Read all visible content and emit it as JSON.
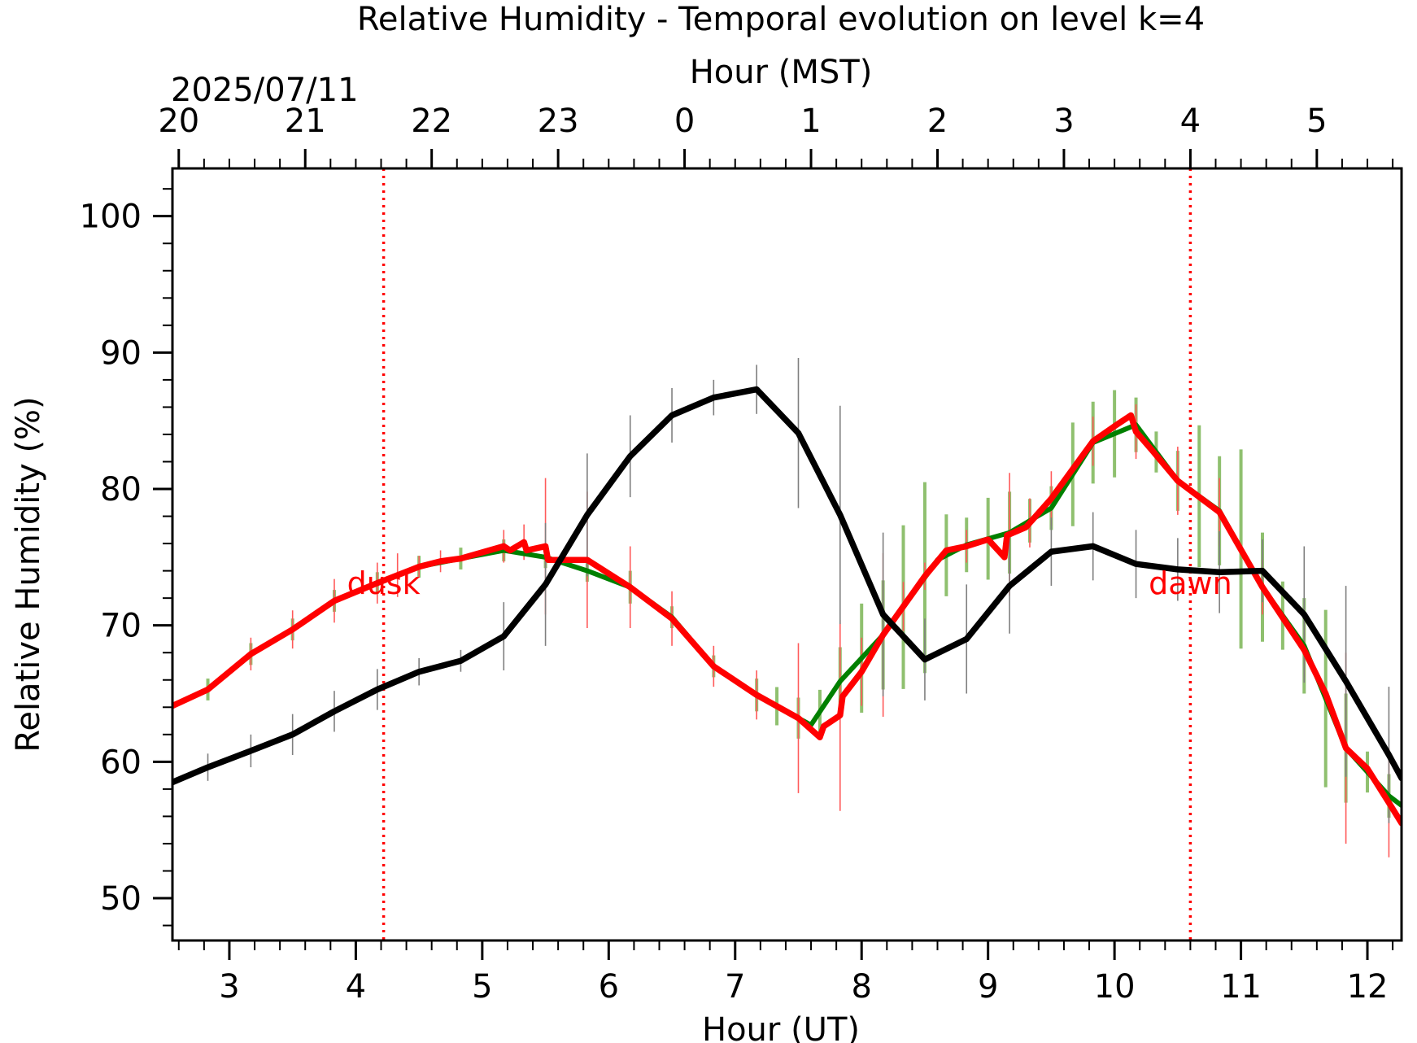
{
  "chart_data": {
    "type": "line",
    "title": "Relative Humidity - Temporal evolution on level k=4",
    "xlabel": "Hour (UT)",
    "top_xlabel": "Hour (MST)",
    "date_label": "2025/07/11",
    "ylabel": "Relative Humidity (%)",
    "xlim": [
      2.55,
      12.27
    ],
    "ylim": [
      46.9,
      103.5
    ],
    "x_ticks": [
      3,
      4,
      5,
      6,
      7,
      8,
      9,
      10,
      11,
      12
    ],
    "x_tick_labels": [
      "3",
      "4",
      "5",
      "6",
      "7",
      "8",
      "9",
      "10",
      "11",
      "12"
    ],
    "top_ticks": [
      2.6,
      3.6,
      4.6,
      5.6,
      6.6,
      7.6,
      8.6,
      9.6,
      10.6,
      11.6,
      12.6,
      13.6
    ],
    "top_tick_labels": [
      "20",
      "21",
      "22",
      "23",
      "0",
      "1",
      "2",
      "3",
      "4",
      "5"
    ],
    "y_ticks": [
      50,
      60,
      70,
      80,
      90,
      100
    ],
    "y_tick_labels": [
      "50",
      "60",
      "70",
      "80",
      "90",
      "100"
    ],
    "grid": false,
    "colors": {
      "black_series": "#000000",
      "green_series": "#008000",
      "red_series": "#ff0000",
      "green_error": "#8fc06f",
      "red_error": "#ff5a5a",
      "black_error": "#7f7f7f",
      "event_line": "#ff0000"
    },
    "events": [
      {
        "label": "dusk",
        "x": 4.22
      },
      {
        "label": "dawn",
        "x": 10.6
      }
    ],
    "series": [
      {
        "color": "black",
        "x": [
          2.55,
          2.83,
          3.17,
          3.5,
          3.83,
          4.17,
          4.5,
          4.83,
          5.17,
          5.5,
          5.83,
          6.17,
          6.5,
          6.83,
          7.17,
          7.5,
          7.83,
          8.17,
          8.5,
          8.83,
          9.17,
          9.5,
          9.83,
          10.17,
          10.5,
          10.83,
          11.17,
          11.5,
          11.83,
          12.17,
          12.27
        ],
        "y": [
          58.5,
          59.6,
          60.8,
          62,
          63.7,
          65.3,
          66.6,
          67.4,
          69.2,
          73,
          78.1,
          82.4,
          85.4,
          86.7,
          87.3,
          84.1,
          78.1,
          70.8,
          67.5,
          69,
          72.9,
          75.4,
          75.8,
          74.5,
          74.1,
          73.9,
          74,
          70.8,
          65.9,
          60.5,
          58.8
        ],
        "err_x": [
          2.83,
          3.17,
          3.5,
          3.83,
          4.17,
          4.5,
          4.83,
          5.17,
          5.5,
          5.83,
          6.17,
          6.5,
          6.83,
          7.17,
          7.5,
          7.83,
          8.17,
          8.5,
          8.83,
          9.17,
          9.5,
          9.83,
          10.17,
          10.5,
          10.83,
          11.17,
          11.5,
          11.83,
          12.17
        ],
        "err_half": [
          1,
          1.2,
          1.5,
          1.5,
          1.5,
          1,
          0.8,
          2.5,
          4.5,
          4.5,
          3,
          2,
          1.3,
          1.8,
          5.5,
          8,
          6,
          3,
          4,
          3.5,
          2.5,
          2.5,
          2.5,
          2.3,
          3,
          2.3,
          5,
          7,
          5
        ],
        "lw": 7.5
      },
      {
        "color": "green",
        "x": [
          2.55,
          2.83,
          3.17,
          3.5,
          3.83,
          4.17,
          4.5,
          4.83,
          5.17,
          5.5,
          5.83,
          6.17,
          6.5,
          6.83,
          7.17,
          7.5,
          7.6,
          7.83,
          8.17,
          8.5,
          8.6,
          8.83,
          9.17,
          9.5,
          9.83,
          10.17,
          10.5,
          10.83,
          11.17,
          11.5,
          11.83,
          12.17,
          12.27
        ],
        "y": [
          64.1,
          65.3,
          67.9,
          69.7,
          71.8,
          73.1,
          74.3,
          74.9,
          75.5,
          75,
          74,
          72.8,
          70.6,
          67,
          64.9,
          63.2,
          62.7,
          65.9,
          69.3,
          73.5,
          74.8,
          75.9,
          76.8,
          78.6,
          83.4,
          84.7,
          80.6,
          78.4,
          72.8,
          68.5,
          61,
          57.5,
          56.8
        ],
        "err_x": [
          2.83,
          3.17,
          3.5,
          3.83,
          4.17,
          4.5,
          4.83,
          5.17,
          5.5,
          5.83,
          6.17,
          6.5,
          6.83,
          7.17,
          7.33,
          7.5,
          7.67,
          7.83,
          8,
          8.17,
          8.33,
          8.5,
          8.67,
          8.83,
          9,
          9.17,
          9.33,
          9.5,
          9.67,
          9.83,
          10,
          10.17,
          10.33,
          10.5,
          10.67,
          10.83,
          11,
          11.17,
          11.33,
          11.5,
          11.67,
          11.83,
          12,
          12.17
        ],
        "err_half": [
          0.8,
          0.8,
          0.8,
          0.8,
          0.8,
          0.8,
          0.8,
          0.8,
          0.8,
          0.8,
          1.2,
          0.8,
          0.8,
          1.2,
          1.4,
          1.5,
          1.6,
          2.5,
          4,
          4,
          6,
          7,
          3,
          2,
          3,
          3,
          1.6,
          1.6,
          3.8,
          3,
          3.2,
          2,
          1.5,
          2.2,
          5.2,
          4,
          7.3,
          4,
          2.5,
          3.5,
          6.5,
          4,
          1.5,
          1.6
        ],
        "lw": 6
      },
      {
        "color": "red",
        "x": [
          2.55,
          2.83,
          3.17,
          3.5,
          3.83,
          4.17,
          4.5,
          4.67,
          4.83,
          5.17,
          5.22,
          5.33,
          5.35,
          5.5,
          5.52,
          5.83,
          6.17,
          6.5,
          6.83,
          7.17,
          7.5,
          7.67,
          7.7,
          7.83,
          7.85,
          8,
          8.17,
          8.5,
          8.67,
          8.83,
          9,
          9.13,
          9.15,
          9.3,
          9.5,
          9.83,
          10,
          10.13,
          10.17,
          10.3,
          10.5,
          10.83,
          11.17,
          11.5,
          11.67,
          11.83,
          12,
          12.17,
          12.27
        ],
        "y": [
          64.1,
          65.3,
          67.9,
          69.7,
          71.8,
          73.1,
          74.3,
          74.7,
          74.9,
          75.8,
          75.5,
          76.1,
          75.5,
          75.8,
          74.8,
          74.8,
          72.8,
          70.5,
          67,
          64.9,
          63.2,
          61.8,
          62.6,
          63.4,
          64.8,
          66.6,
          69.3,
          73.6,
          75.5,
          75.8,
          76.3,
          75,
          76.6,
          77.2,
          79.3,
          83.5,
          84.6,
          85.4,
          84.2,
          82.8,
          80.6,
          78.3,
          72.8,
          68.2,
          65,
          61,
          59.5,
          57,
          55.5
        ],
        "err_x": [
          3.17,
          3.5,
          3.83,
          4.17,
          4.33,
          4.5,
          4.67,
          5.17,
          5.33,
          5.5,
          5.83,
          6.17,
          6.5,
          6.83,
          7.17,
          7.5,
          7.83,
          8,
          8.17,
          8.33,
          8.5,
          8.83,
          9.17,
          9.33,
          9.5,
          9.83,
          10.17,
          10.5,
          10.83,
          11.17,
          11.5,
          11.83,
          12.17
        ],
        "err_half": [
          1.2,
          1.4,
          1.6,
          1.5,
          1.6,
          0.8,
          0.8,
          1.2,
          1.3,
          5,
          5,
          3,
          2,
          1.5,
          1.8,
          5.5,
          7,
          2.5,
          6,
          1.8,
          1,
          1.2,
          4.5,
          1.8,
          2,
          1.8,
          2,
          2.5,
          2.5,
          2,
          2,
          7,
          4
        ],
        "lw": 7.5
      }
    ]
  }
}
